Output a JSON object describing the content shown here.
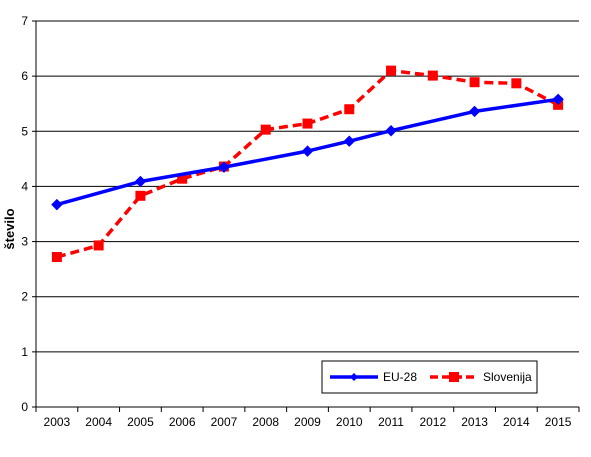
{
  "chart_data": {
    "type": "line",
    "title": "",
    "xlabel": "",
    "ylabel": "število",
    "ylim": [
      0,
      7
    ],
    "yticks": [
      "0",
      "1",
      "2",
      "3",
      "4",
      "5",
      "6",
      "7"
    ],
    "grid": true,
    "legend_position": "bottom-right",
    "categories": [
      "2003",
      "2004",
      "2005",
      "2006",
      "2007",
      "2008",
      "2009",
      "2010",
      "2011",
      "2012",
      "2013",
      "2014",
      "2015"
    ],
    "series": [
      {
        "name": "EU-28",
        "color": "#0000ff",
        "style": "solid",
        "marker": "diamond",
        "points": [
          {
            "x": "2003",
            "y": 3.67
          },
          {
            "x": "2005",
            "y": 4.09
          },
          {
            "x": "2007",
            "y": 4.35
          },
          {
            "x": "2009",
            "y": 4.64
          },
          {
            "x": "2010",
            "y": 4.82
          },
          {
            "x": "2011",
            "y": 5.01
          },
          {
            "x": "2013",
            "y": 5.36
          },
          {
            "x": "2015",
            "y": 5.58
          }
        ]
      },
      {
        "name": "Slovenija",
        "color": "#ff0000",
        "style": "dashed",
        "marker": "square",
        "points": [
          {
            "x": "2003",
            "y": 2.72
          },
          {
            "x": "2004",
            "y": 2.93
          },
          {
            "x": "2005",
            "y": 3.83
          },
          {
            "x": "2006",
            "y": 4.14
          },
          {
            "x": "2007",
            "y": 4.36
          },
          {
            "x": "2008",
            "y": 5.03
          },
          {
            "x": "2009",
            "y": 5.14
          },
          {
            "x": "2010",
            "y": 5.4
          },
          {
            "x": "2011",
            "y": 6.1
          },
          {
            "x": "2012",
            "y": 6.01
          },
          {
            "x": "2013",
            "y": 5.89
          },
          {
            "x": "2014",
            "y": 5.87
          },
          {
            "x": "2015",
            "y": 5.48
          }
        ]
      }
    ]
  }
}
